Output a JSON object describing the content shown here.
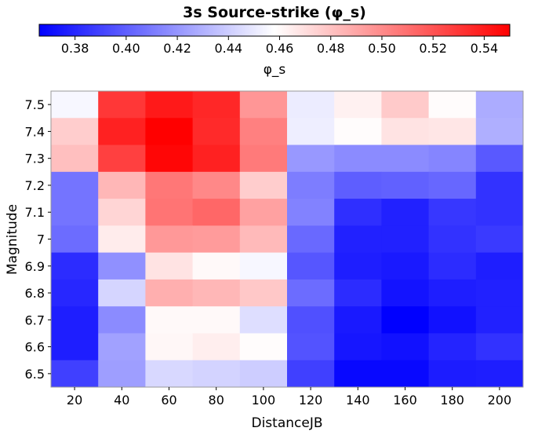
{
  "chart_data": {
    "type": "heatmap",
    "title": "3s Source-strike (φ_s)",
    "xlabel": "DistanceJB",
    "ylabel": "Magnitude",
    "x_categories": [
      "20",
      "40",
      "60",
      "80",
      "100",
      "120",
      "140",
      "160",
      "180",
      "200"
    ],
    "y_categories": [
      "7.5",
      "7.4",
      "7.3",
      "7.2",
      "7.1",
      "7",
      "6.9",
      "6.8",
      "6.7",
      "6.6",
      "6.5"
    ],
    "colorbar": {
      "label": "φ_s",
      "min": 0.366,
      "max": 0.55,
      "ticks": [
        "0.38",
        "0.40",
        "0.42",
        "0.44",
        "0.46",
        "0.48",
        "0.50",
        "0.52",
        "0.54"
      ],
      "low_color": "#0000ff",
      "mid_color": "#ffffff",
      "high_color": "#ff0000"
    },
    "values": [
      [
        0.455,
        0.53,
        0.541,
        0.536,
        0.496,
        0.451,
        0.463,
        0.477,
        0.459,
        0.428
      ],
      [
        0.476,
        0.538,
        0.55,
        0.535,
        0.504,
        0.452,
        0.459,
        0.468,
        0.467,
        0.429
      ],
      [
        0.481,
        0.527,
        0.548,
        0.538,
        0.506,
        0.421,
        0.416,
        0.416,
        0.414,
        0.398
      ],
      [
        0.408,
        0.484,
        0.507,
        0.501,
        0.476,
        0.411,
        0.4,
        0.401,
        0.403,
        0.384
      ],
      [
        0.408,
        0.473,
        0.508,
        0.513,
        0.492,
        0.413,
        0.383,
        0.378,
        0.386,
        0.384
      ],
      [
        0.405,
        0.465,
        0.495,
        0.494,
        0.483,
        0.404,
        0.378,
        0.378,
        0.384,
        0.387
      ],
      [
        0.382,
        0.418,
        0.468,
        0.46,
        0.455,
        0.397,
        0.377,
        0.375,
        0.382,
        0.377
      ],
      [
        0.38,
        0.443,
        0.487,
        0.484,
        0.478,
        0.405,
        0.382,
        0.373,
        0.377,
        0.378
      ],
      [
        0.377,
        0.416,
        0.46,
        0.46,
        0.446,
        0.395,
        0.375,
        0.366,
        0.372,
        0.378
      ],
      [
        0.377,
        0.424,
        0.461,
        0.464,
        0.459,
        0.396,
        0.374,
        0.372,
        0.379,
        0.384
      ],
      [
        0.389,
        0.423,
        0.444,
        0.442,
        0.44,
        0.389,
        0.369,
        0.369,
        0.376,
        0.377
      ]
    ]
  }
}
